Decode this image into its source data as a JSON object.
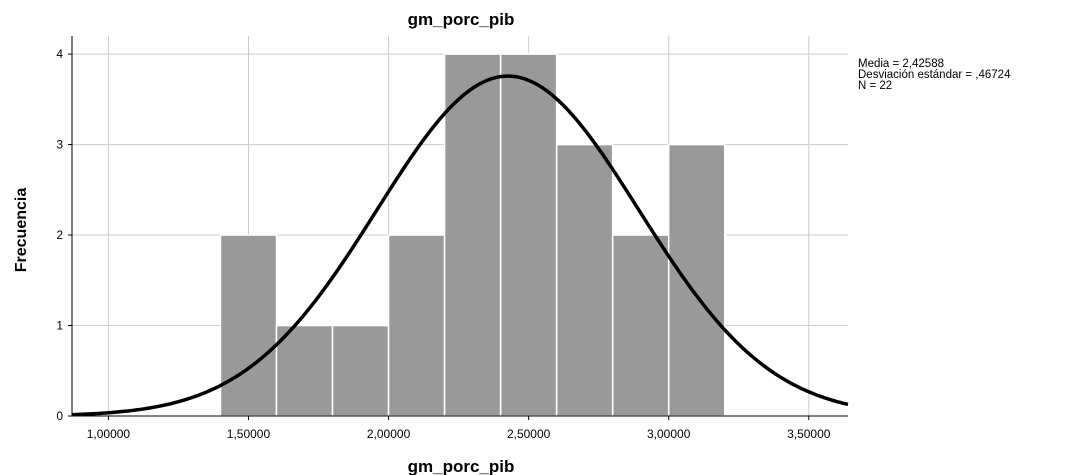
{
  "chart_data": {
    "type": "bar",
    "title": "gm_porc_pib",
    "xlabel": "gm_porc_pib",
    "ylabel": "Frecuencia",
    "bins": [
      {
        "start": 1.4,
        "end": 1.6,
        "count": 2
      },
      {
        "start": 1.6,
        "end": 1.8,
        "count": 1
      },
      {
        "start": 1.8,
        "end": 2.0,
        "count": 1
      },
      {
        "start": 2.0,
        "end": 2.2,
        "count": 2
      },
      {
        "start": 2.2,
        "end": 2.4,
        "count": 4
      },
      {
        "start": 2.4,
        "end": 2.6,
        "count": 4
      },
      {
        "start": 2.6,
        "end": 2.8,
        "count": 3
      },
      {
        "start": 2.8,
        "end": 3.0,
        "count": 2
      },
      {
        "start": 3.0,
        "end": 3.2,
        "count": 3
      }
    ],
    "x_ticks": [
      {
        "value": 1.0,
        "label": "1,00000"
      },
      {
        "value": 1.5,
        "label": "1,50000"
      },
      {
        "value": 2.0,
        "label": "2,00000"
      },
      {
        "value": 2.5,
        "label": "2,50000"
      },
      {
        "value": 3.0,
        "label": "3,00000"
      },
      {
        "value": 3.5,
        "label": "3,50000"
      }
    ],
    "y_ticks": [
      {
        "value": 0,
        "label": "0"
      },
      {
        "value": 1,
        "label": "1"
      },
      {
        "value": 2,
        "label": "2"
      },
      {
        "value": 3,
        "label": "3"
      },
      {
        "value": 4,
        "label": "4"
      }
    ],
    "xlim": [
      0.87,
      3.64
    ],
    "ylim": [
      0,
      4.2
    ],
    "grid": true,
    "normal_curve": {
      "mean": 2.42588,
      "sd": 0.46724,
      "n": 22,
      "bin_width": 0.2
    },
    "legend_position": "top-right",
    "stats_text": [
      "Media = 2,42588",
      "Desviación estándar = ,46724",
      "N = 22"
    ],
    "colors": {
      "bar": "#999999",
      "bar_edge": "#ffffff",
      "curve": "#000000",
      "grid": "#cccccc",
      "axis": "#000000"
    }
  }
}
